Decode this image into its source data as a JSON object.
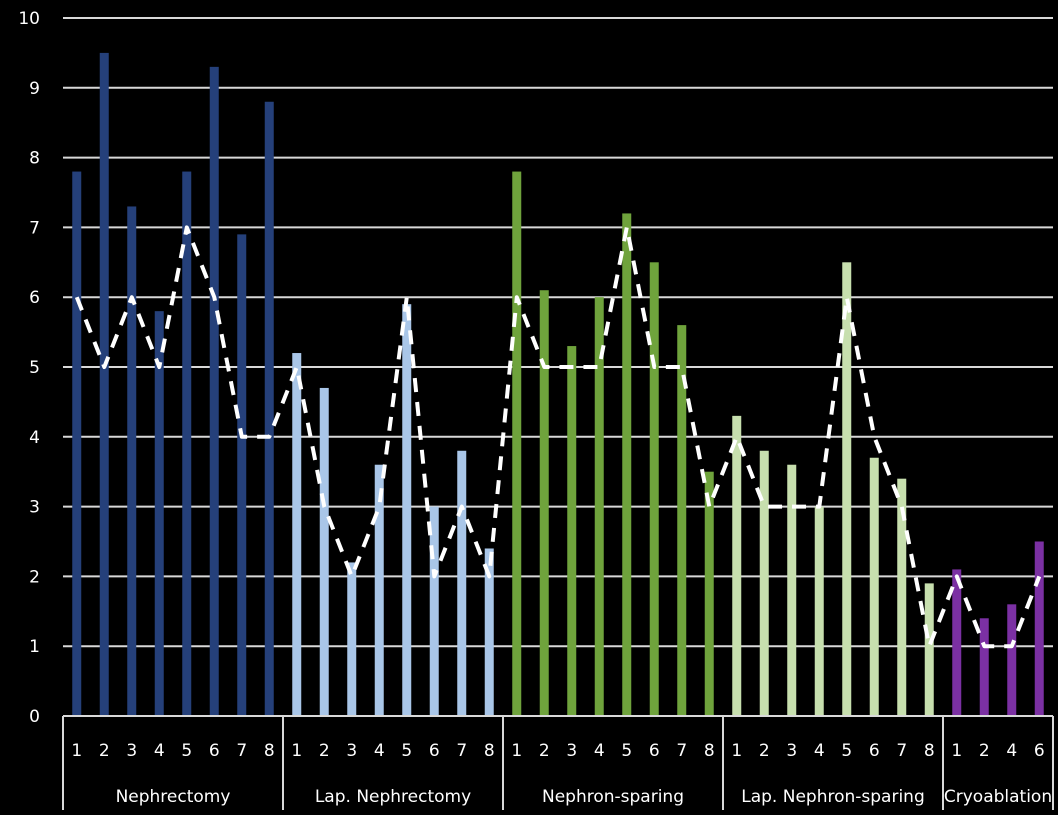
{
  "chart_data": {
    "type": "bar",
    "title": "",
    "xlabel": "",
    "ylabel": "",
    "ylim": [
      0,
      10
    ],
    "yticks": [
      0,
      1,
      2,
      3,
      4,
      5,
      6,
      7,
      8,
      9,
      10
    ],
    "grid": true,
    "legend": "none",
    "groups": [
      {
        "name": "Nephrectomy",
        "color": "#25407a",
        "categories": [
          "1",
          "2",
          "3",
          "4",
          "5",
          "6",
          "7",
          "8"
        ],
        "values": [
          7.8,
          9.5,
          7.3,
          5.8,
          7.8,
          9.3,
          6.9,
          8.8
        ],
        "line": [
          6,
          5,
          6,
          5,
          7,
          6,
          4,
          4
        ]
      },
      {
        "name": "Lap. Nephrectomy",
        "color": "#a9c6e8",
        "categories": [
          "1",
          "2",
          "3",
          "4",
          "5",
          "6",
          "7",
          "8"
        ],
        "values": [
          5.2,
          4.7,
          2.2,
          3.6,
          5.9,
          3.0,
          3.8,
          2.4
        ],
        "line": [
          5,
          3,
          2,
          3,
          6,
          2,
          3,
          2
        ]
      },
      {
        "name": "Nephron-sparing",
        "color": "#6fa33c",
        "categories": [
          "1",
          "2",
          "3",
          "4",
          "5",
          "6",
          "7",
          "8"
        ],
        "values": [
          7.8,
          6.1,
          5.3,
          6.0,
          7.2,
          6.5,
          5.6,
          3.5
        ],
        "line": [
          6,
          5,
          5,
          5,
          7,
          5,
          5,
          3
        ]
      },
      {
        "name": "Lap. Nephron-sparing",
        "color": "#c7dfae",
        "categories": [
          "1",
          "2",
          "3",
          "4",
          "5",
          "6",
          "7",
          "8"
        ],
        "values": [
          4.3,
          3.8,
          3.6,
          3.0,
          6.5,
          3.7,
          3.4,
          1.9
        ],
        "line": [
          4,
          3,
          3,
          3,
          6,
          4,
          3,
          1
        ]
      },
      {
        "name": "Cryoablation",
        "color": "#7b30a3",
        "categories": [
          "1",
          "2",
          "4",
          "6"
        ],
        "values": [
          2.1,
          1.4,
          1.6,
          2.5
        ],
        "line": [
          2,
          1,
          1,
          2
        ]
      }
    ]
  }
}
